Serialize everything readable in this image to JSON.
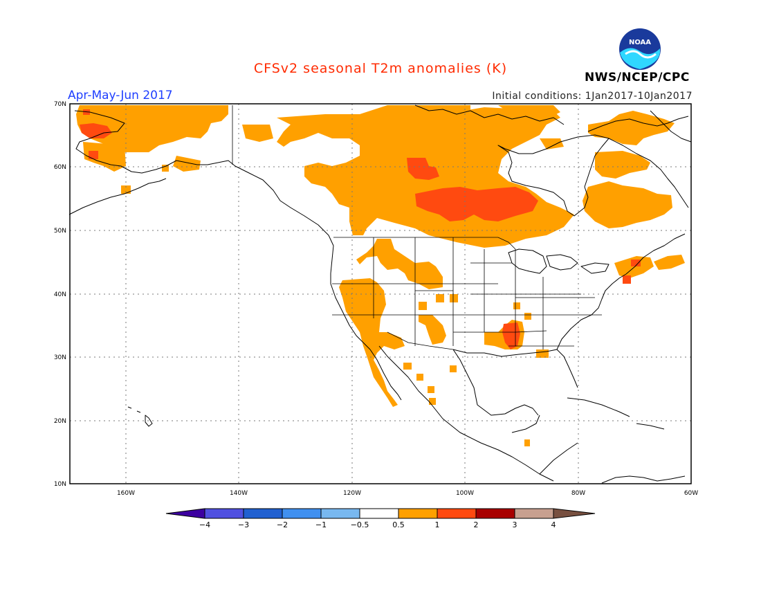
{
  "title": "CFSv2 seasonal T2m anomalies (K)",
  "season": "Apr-May-Jun 2017",
  "initial_conditions": "Initial conditions: 1Jan2017-10Jan2017",
  "organization": "NWS/NCEP/CPC",
  "logo_text": "NOAA",
  "colors": {
    "title": "#ff2a00",
    "season": "#1f3fff",
    "anom_0_5_1": "#ffa000",
    "anom_1_2": "#ff4a10",
    "land_outline": "#000000",
    "grid": "#777777"
  },
  "map": {
    "lon_range": [
      -172,
      -60
    ],
    "lat_range": [
      10,
      70
    ],
    "lat_ticks": [
      "10N",
      "20N",
      "30N",
      "40N",
      "50N",
      "60N",
      "70N"
    ],
    "lon_ticks": [
      "160W",
      "140W",
      "120W",
      "100W",
      "80W",
      "60W"
    ]
  },
  "colorbar": {
    "labels": [
      "−4",
      "−3",
      "−2",
      "−1",
      "−0.5",
      "0.5",
      "1",
      "2",
      "3",
      "4"
    ],
    "colors": [
      "#3c00a0",
      "#5050e0",
      "#2060d0",
      "#4090f0",
      "#78b8f0",
      "#ffffff",
      "#ffa000",
      "#ff4a10",
      "#a80000",
      "#c8a090",
      "#785040"
    ]
  }
}
